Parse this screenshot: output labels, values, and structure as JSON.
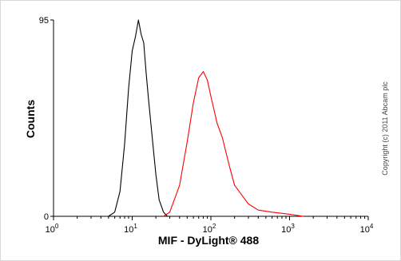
{
  "chart_data": {
    "type": "line",
    "title": "",
    "xlabel": "MIF - DyLight® 488",
    "ylabel": "Counts",
    "x_scale": "log",
    "xlim": [
      1,
      10000
    ],
    "ylim": [
      0,
      95
    ],
    "x_ticks": [
      {
        "base": "10",
        "exp": "0",
        "value": 1
      },
      {
        "base": "10",
        "exp": "1",
        "value": 10
      },
      {
        "base": "10",
        "exp": "2",
        "value": 100
      },
      {
        "base": "10",
        "exp": "3",
        "value": 1000
      },
      {
        "base": "10",
        "exp": "4",
        "value": 10000
      }
    ],
    "y_ticks": [
      {
        "label": "0",
        "value": 0
      },
      {
        "label": "95",
        "value": 95
      }
    ],
    "grid": false,
    "series": [
      {
        "color": "#000000",
        "points": [
          [
            5,
            0
          ],
          [
            6,
            2
          ],
          [
            7,
            12
          ],
          [
            8,
            35
          ],
          [
            9,
            62
          ],
          [
            10,
            80
          ],
          [
            11,
            87
          ],
          [
            12,
            95
          ],
          [
            13,
            88
          ],
          [
            14,
            84
          ],
          [
            15,
            70
          ],
          [
            16,
            58
          ],
          [
            18,
            38
          ],
          [
            20,
            20
          ],
          [
            22,
            8
          ],
          [
            25,
            2
          ],
          [
            28,
            0
          ]
        ]
      },
      {
        "color": "#ff0000",
        "points": [
          [
            25,
            0
          ],
          [
            30,
            2
          ],
          [
            40,
            15
          ],
          [
            50,
            36
          ],
          [
            60,
            55
          ],
          [
            70,
            67
          ],
          [
            80,
            70
          ],
          [
            90,
            66
          ],
          [
            100,
            58
          ],
          [
            120,
            45
          ],
          [
            140,
            38
          ],
          [
            170,
            25
          ],
          [
            200,
            15
          ],
          [
            250,
            10
          ],
          [
            300,
            6
          ],
          [
            400,
            3
          ],
          [
            600,
            2
          ],
          [
            1000,
            1
          ],
          [
            1500,
            0
          ]
        ]
      }
    ]
  },
  "copyright": "Copyright (c) 2011 Abcam plc"
}
